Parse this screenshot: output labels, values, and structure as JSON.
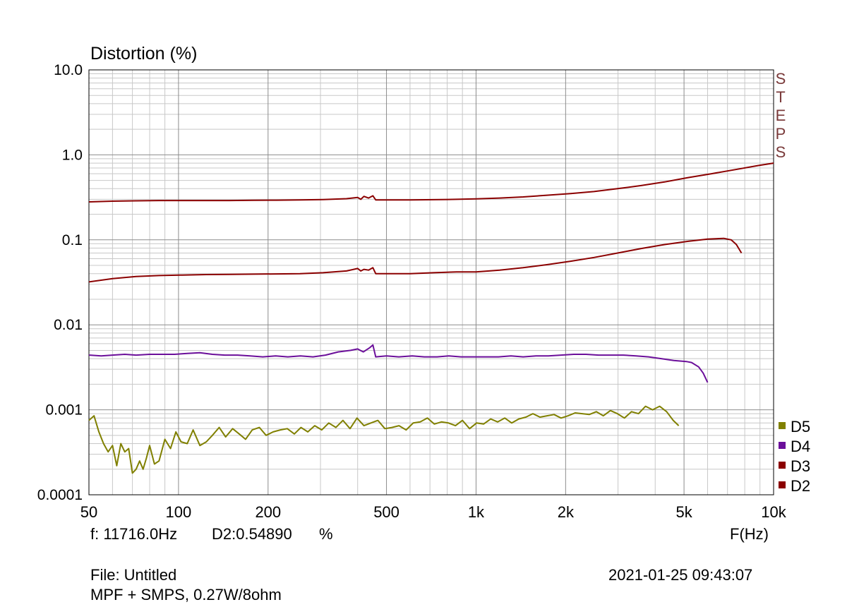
{
  "chart_data": {
    "type": "line",
    "title": "Distortion (%)",
    "xlabel": "F(Hz)",
    "x_scale": "log",
    "y_scale": "log",
    "xlim": [
      50,
      10000
    ],
    "ylim": [
      0.0001,
      10
    ],
    "grid": true,
    "x_ticks": [
      {
        "value": 50,
        "label": "50"
      },
      {
        "value": 100,
        "label": "100"
      },
      {
        "value": 200,
        "label": "200"
      },
      {
        "value": 500,
        "label": "500"
      },
      {
        "value": 1000,
        "label": "1k"
      },
      {
        "value": 2000,
        "label": "2k"
      },
      {
        "value": 5000,
        "label": "5k"
      },
      {
        "value": 10000,
        "label": "10k"
      }
    ],
    "y_ticks": [
      {
        "value": 10,
        "label": "10.0"
      },
      {
        "value": 1,
        "label": "1.0"
      },
      {
        "value": 0.1,
        "label": "0.1"
      },
      {
        "value": 0.01,
        "label": "0.01"
      },
      {
        "value": 0.001,
        "label": "0.001"
      },
      {
        "value": 0.0001,
        "label": "0.0001"
      }
    ],
    "steps_label": "STEPS",
    "legend_position": "bottom-right",
    "series": [
      {
        "name": "D5",
        "color": "#808000",
        "x": [
          50,
          52,
          54,
          56,
          58,
          60,
          62,
          64,
          66,
          68,
          70,
          72,
          74,
          76,
          78,
          80,
          83,
          86,
          90,
          94,
          98,
          102,
          107,
          112,
          118,
          124,
          130,
          137,
          144,
          152,
          160,
          168,
          177,
          187,
          197,
          208,
          220,
          232,
          245,
          258,
          272,
          287,
          303,
          320,
          338,
          357,
          377,
          398,
          420,
          443,
          468,
          494,
          522,
          551,
          582,
          615,
          649,
          686,
          724,
          765,
          808,
          853,
          900,
          951,
          1004,
          1060,
          1120,
          1182,
          1249,
          1318,
          1392,
          1470,
          1553,
          1640,
          1732,
          1829,
          1931,
          2039,
          2153,
          2274,
          2401,
          2536,
          2678,
          2828,
          2986,
          3153,
          3330,
          3516,
          3713,
          3921,
          4140,
          4372,
          4600,
          4800
        ],
        "values": [
          0.00075,
          0.00085,
          0.00055,
          0.0004,
          0.00032,
          0.00038,
          0.00022,
          0.0004,
          0.00032,
          0.00035,
          0.00018,
          0.0002,
          0.00025,
          0.0002,
          0.00027,
          0.00038,
          0.00023,
          0.00025,
          0.00045,
          0.00035,
          0.00055,
          0.00042,
          0.0004,
          0.00058,
          0.00038,
          0.00042,
          0.0005,
          0.00062,
          0.00048,
          0.0006,
          0.00052,
          0.00045,
          0.00058,
          0.00062,
          0.0005,
          0.00055,
          0.00058,
          0.0006,
          0.00052,
          0.00062,
          0.00055,
          0.00065,
          0.00058,
          0.0007,
          0.00062,
          0.00075,
          0.0006,
          0.0008,
          0.00065,
          0.0007,
          0.00075,
          0.0006,
          0.00062,
          0.00065,
          0.00058,
          0.0007,
          0.00072,
          0.0008,
          0.00068,
          0.00072,
          0.0007,
          0.00065,
          0.00075,
          0.0006,
          0.0007,
          0.00068,
          0.00078,
          0.00072,
          0.0008,
          0.0007,
          0.00078,
          0.00082,
          0.0009,
          0.00082,
          0.00085,
          0.00088,
          0.0008,
          0.00085,
          0.00092,
          0.0009,
          0.00088,
          0.00095,
          0.00085,
          0.00098,
          0.0009,
          0.0008,
          0.00095,
          0.0009,
          0.0011,
          0.001,
          0.0011,
          0.00095,
          0.00075,
          0.00065
        ]
      },
      {
        "name": "D4",
        "color": "#6b0f9a",
        "x": [
          50,
          55,
          60,
          66,
          72,
          80,
          88,
          97,
          107,
          118,
          130,
          143,
          158,
          174,
          192,
          212,
          233,
          257,
          283,
          312,
          344,
          379,
          400,
          418,
          440,
          450,
          460,
          500,
          550,
          610,
          670,
          740,
          810,
          890,
          980,
          1080,
          1190,
          1310,
          1440,
          1590,
          1750,
          1930,
          2130,
          2340,
          2580,
          2840,
          3130,
          3450,
          3800,
          4190,
          4620,
          5090,
          5300,
          5600,
          5800,
          6000
        ],
        "values": [
          0.0044,
          0.0043,
          0.0044,
          0.0045,
          0.0044,
          0.0045,
          0.0045,
          0.0045,
          0.0046,
          0.0047,
          0.0045,
          0.0044,
          0.0044,
          0.0043,
          0.0042,
          0.0043,
          0.0042,
          0.0043,
          0.0042,
          0.0044,
          0.0048,
          0.005,
          0.0052,
          0.0048,
          0.0054,
          0.0058,
          0.0042,
          0.0043,
          0.0042,
          0.0043,
          0.0042,
          0.0042,
          0.0043,
          0.0042,
          0.0042,
          0.0042,
          0.0042,
          0.0043,
          0.0042,
          0.0043,
          0.0043,
          0.0044,
          0.0045,
          0.0045,
          0.0044,
          0.0044,
          0.0044,
          0.0043,
          0.0042,
          0.004,
          0.0038,
          0.0037,
          0.0036,
          0.0032,
          0.0027,
          0.0021
        ]
      },
      {
        "name": "D3",
        "color": "#8b0000",
        "x": [
          50,
          60,
          72,
          86,
          103,
          124,
          148,
          178,
          213,
          256,
          306,
          367,
          400,
          410,
          420,
          435,
          450,
          460,
          500,
          600,
          720,
          860,
          1000,
          1200,
          1440,
          1730,
          2080,
          2490,
          2990,
          3590,
          4300,
          5160,
          6000,
          6800,
          7200,
          7500,
          7800
        ],
        "values": [
          0.032,
          0.035,
          0.037,
          0.038,
          0.0385,
          0.039,
          0.0392,
          0.0395,
          0.0397,
          0.04,
          0.041,
          0.043,
          0.046,
          0.043,
          0.045,
          0.044,
          0.047,
          0.04,
          0.04,
          0.04,
          0.041,
          0.042,
          0.042,
          0.044,
          0.047,
          0.051,
          0.056,
          0.062,
          0.07,
          0.079,
          0.088,
          0.096,
          0.102,
          0.104,
          0.1,
          0.088,
          0.07
        ]
      },
      {
        "name": "D2",
        "color": "#8b0000",
        "x": [
          50,
          60,
          72,
          86,
          103,
          124,
          148,
          178,
          213,
          256,
          306,
          367,
          400,
          410,
          420,
          435,
          450,
          460,
          500,
          600,
          720,
          860,
          1000,
          1200,
          1440,
          1730,
          2080,
          2490,
          2990,
          3590,
          4300,
          5160,
          6190,
          7430,
          8920,
          10000
        ],
        "values": [
          0.28,
          0.285,
          0.288,
          0.29,
          0.29,
          0.29,
          0.29,
          0.292,
          0.293,
          0.295,
          0.298,
          0.305,
          0.315,
          0.3,
          0.325,
          0.31,
          0.33,
          0.295,
          0.295,
          0.295,
          0.297,
          0.3,
          0.303,
          0.31,
          0.32,
          0.335,
          0.35,
          0.37,
          0.4,
          0.435,
          0.48,
          0.54,
          0.6,
          0.67,
          0.75,
          0.8
        ]
      }
    ]
  },
  "readout": {
    "frequency": "f: 11716.0Hz",
    "value": "D2:0.54890",
    "unit": "%"
  },
  "footer": {
    "file": "File: Untitled",
    "description": "MPF + SMPS, 0.27W/8ohm",
    "timestamp": "2021-01-25 09:43:07"
  }
}
